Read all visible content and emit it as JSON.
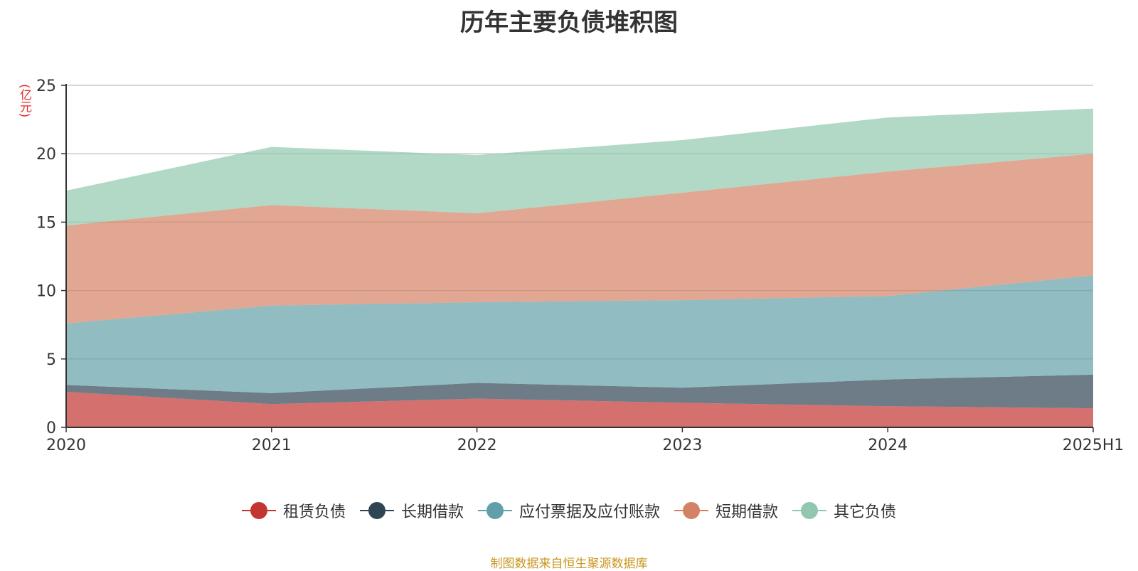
{
  "chart_data": {
    "type": "area",
    "title": "历年主要负债堆积图",
    "ylabel": "(亿元)",
    "xlabel": "",
    "categories": [
      "2020",
      "2021",
      "2022",
      "2023",
      "2024",
      "2025H1"
    ],
    "ylim": [
      0,
      25
    ],
    "yticks": [
      "0",
      "5",
      "10",
      "15",
      "20",
      "25"
    ],
    "stacked": true,
    "grid": true,
    "legend_position": "bottom",
    "series": [
      {
        "name": "租赁负债",
        "color": "#c23531",
        "values": [
          2.6,
          1.7,
          2.1,
          1.8,
          1.55,
          1.4
        ]
      },
      {
        "name": "长期借款",
        "color": "#2f4554",
        "values": [
          0.5,
          0.8,
          1.15,
          1.1,
          1.95,
          2.45
        ]
      },
      {
        "name": "应付票据及应付账款",
        "color": "#61a0a8",
        "values": [
          4.5,
          6.4,
          5.9,
          6.4,
          6.1,
          7.25
        ]
      },
      {
        "name": "短期借款",
        "color": "#d48265",
        "values": [
          7.15,
          7.35,
          6.5,
          7.85,
          9.1,
          8.9
        ]
      },
      {
        "name": "其它负债",
        "color": "#91c7ae",
        "values": [
          2.55,
          4.25,
          4.25,
          3.85,
          3.95,
          3.3
        ]
      }
    ]
  },
  "footer": {
    "source": "制图数据来自恒生聚源数据库"
  }
}
